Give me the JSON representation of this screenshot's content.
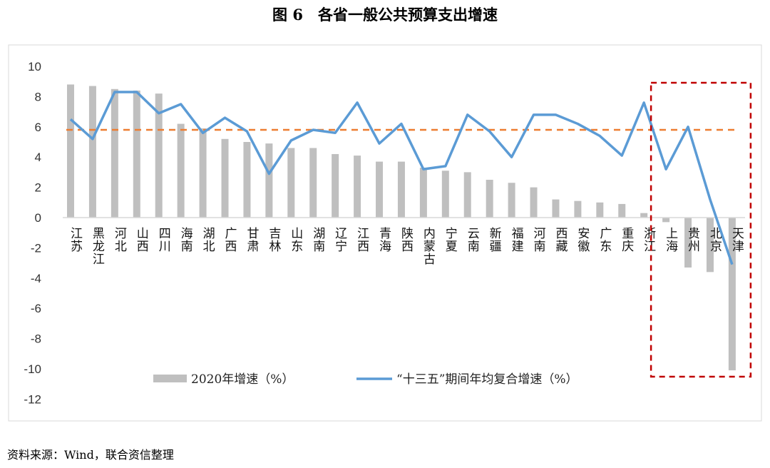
{
  "title": "图 6　各省一般公共预算支出增速",
  "source": "资料来源：Wind，联合资信整理",
  "chart_data": {
    "type": "bar+line",
    "title": "图 6　各省一般公共预算支出增速",
    "ylim": [
      -12,
      10
    ],
    "yticks": [
      10,
      8,
      6,
      4,
      2,
      0,
      -2,
      -4,
      -6,
      -8,
      -10,
      -12
    ],
    "grid": false,
    "legend_position": "bottom-inside",
    "categories": [
      "江苏",
      "黑龙江",
      "河北",
      "山西",
      "四川",
      "海南",
      "湖北",
      "广西",
      "甘肃",
      "吉林",
      "山东",
      "湖南",
      "辽宁",
      "江西",
      "青海",
      "陕西",
      "内蒙古",
      "宁夏",
      "云南",
      "新疆",
      "福建",
      "河南",
      "西藏",
      "安徽",
      "广东",
      "重庆",
      "浙江",
      "上海",
      "贵州",
      "北京",
      "天津"
    ],
    "series": [
      {
        "name": "2020年增速（%）",
        "type": "bar",
        "color": "#bfbfbf",
        "values": [
          8.8,
          8.7,
          8.5,
          8.4,
          8.2,
          6.2,
          5.9,
          5.2,
          5.0,
          4.9,
          4.6,
          4.6,
          4.2,
          4.1,
          3.7,
          3.7,
          3.3,
          3.1,
          3.0,
          2.5,
          2.3,
          2.0,
          1.2,
          1.1,
          1.0,
          0.9,
          0.3,
          -0.3,
          -3.3,
          -3.6,
          -10.1
        ]
      },
      {
        "name": "“十三五”期间年均复合增速（%）",
        "type": "line",
        "color": "#5b9bd5",
        "values": [
          6.5,
          5.2,
          8.3,
          8.3,
          6.9,
          7.5,
          5.6,
          6.6,
          5.7,
          2.9,
          5.1,
          5.8,
          5.6,
          7.6,
          4.9,
          6.2,
          3.2,
          3.4,
          6.8,
          5.7,
          4.0,
          6.8,
          6.8,
          6.2,
          5.4,
          4.1,
          7.6,
          3.2,
          6.0,
          1.2,
          -3.1
        ]
      }
    ],
    "reference_line": {
      "value": 5.8,
      "color": "#ed7d31",
      "style": "dashed"
    },
    "highlight_box": {
      "categories": [
        "上海",
        "贵州",
        "北京",
        "天津"
      ],
      "color": "#c00000",
      "style": "dashed"
    }
  }
}
